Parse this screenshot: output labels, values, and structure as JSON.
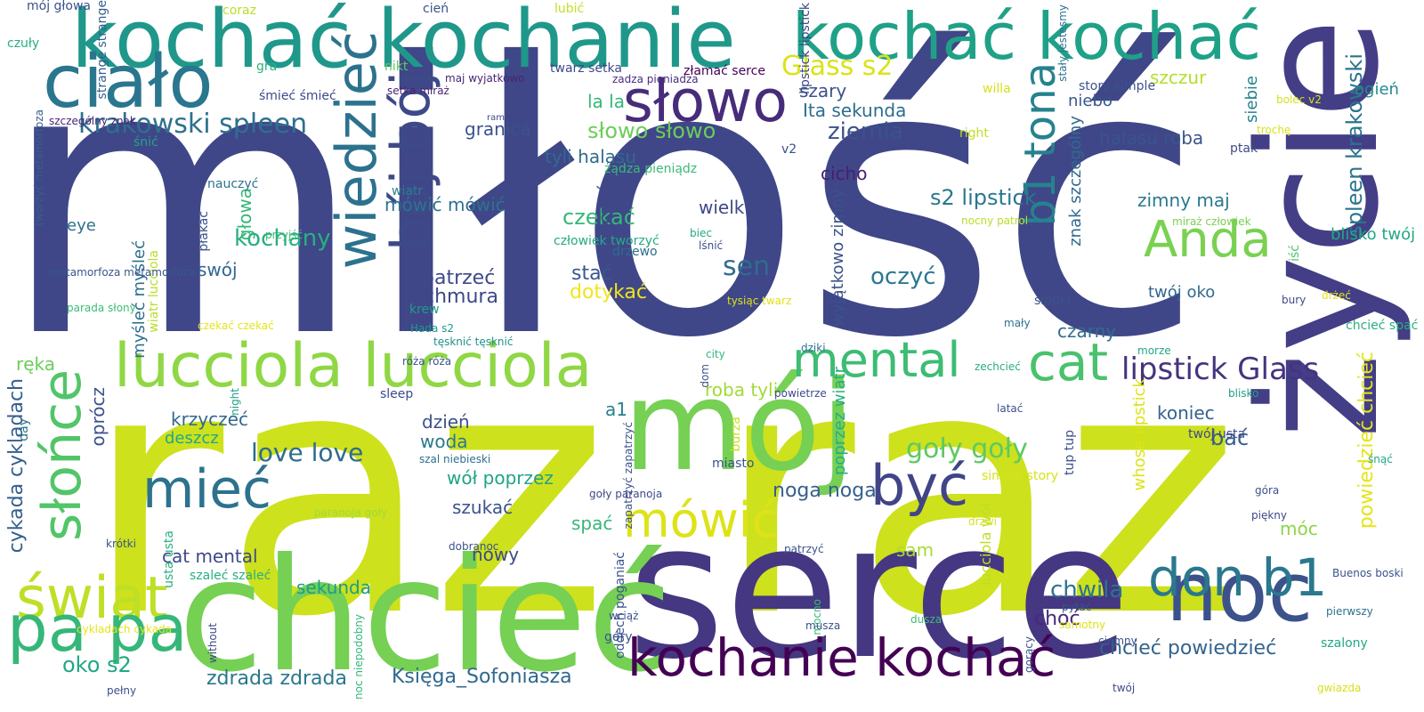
{
  "words": [
    {
      "text": "miłość",
      "color": "#3f4788",
      "rotated": false
    },
    {
      "text": "raz raz",
      "color": "#cde11d",
      "rotated": false
    },
    {
      "text": "serce",
      "color": "#453781",
      "rotated": false
    },
    {
      "text": "chcieć",
      "color": "#75d054",
      "rotated": false
    },
    {
      "text": "mój",
      "color": "#75d054",
      "rotated": false
    },
    {
      "text": "życie",
      "color": "#433e85",
      "rotated": true
    },
    {
      "text": "kochać kochanie",
      "color": "#1f988b",
      "rotated": false
    },
    {
      "text": "kochać kochać",
      "color": "#1fa187",
      "rotated": false
    },
    {
      "text": "noc",
      "color": "#3b528b",
      "rotated": false
    },
    {
      "text": "kochanie kochać",
      "color": "#440154",
      "rotated": false
    },
    {
      "text": "lucciola lucciola",
      "color": "#8fd744",
      "rotated": false
    },
    {
      "text": "ciało",
      "color": "#2a768e",
      "rotated": false
    },
    {
      "text": "słowo",
      "color": "#472c7a",
      "rotated": false
    },
    {
      "text": "wiedzieć",
      "color": "#2c728e",
      "rotated": true
    },
    {
      "text": "bój bój",
      "color": "#3e4989",
      "rotated": true
    },
    {
      "text": "świat",
      "color": "#bddf26",
      "rotated": false
    },
    {
      "text": "pa pa",
      "color": "#35b779",
      "rotated": false
    },
    {
      "text": "słońce",
      "color": "#52c569",
      "rotated": true
    },
    {
      "text": "mieć",
      "color": "#2c728e",
      "rotated": false
    },
    {
      "text": "don b1",
      "color": "#2a788e",
      "rotated": false
    },
    {
      "text": "cat",
      "color": "#4ac16d",
      "rotated": false
    },
    {
      "text": "mental",
      "color": "#3dbc74",
      "rotated": false
    },
    {
      "text": "Anda",
      "color": "#7ad151",
      "rotated": false
    },
    {
      "text": "być",
      "color": "#414487",
      "rotated": false
    },
    {
      "text": "mówić",
      "color": "#dde318",
      "rotated": false
    },
    {
      "text": "b1 tona",
      "color": "#26828e",
      "rotated": true
    },
    {
      "text": "lipstick Glass",
      "color": "#46337f",
      "rotated": false
    },
    {
      "text": "Glass s2",
      "color": "#dae319",
      "rotated": false
    },
    {
      "text": "krakowski spleen",
      "color": "#2d708e",
      "rotated": false
    },
    {
      "text": "spleen krakowski",
      "color": "#2b748e",
      "rotated": true
    },
    {
      "text": "chwila",
      "color": "#2b748e",
      "rotated": false
    },
    {
      "text": "chcieć powiedzieć",
      "color": "#33638d",
      "rotated": false
    },
    {
      "text": "powiedzieć chcieć",
      "color": "#e5e419",
      "rotated": true
    },
    {
      "text": "oko s2",
      "color": "#22a785",
      "rotated": false
    },
    {
      "text": "zdrada zdrada",
      "color": "#2a778e",
      "rotated": false
    },
    {
      "text": "Księga_Sofoniasza",
      "color": "#31688e",
      "rotated": false
    },
    {
      "text": "cykada cykladach",
      "color": "#355f8d",
      "rotated": true
    },
    {
      "text": "goły goły",
      "color": "#5ec962",
      "rotated": false
    },
    {
      "text": "love love",
      "color": "#2f6c8e",
      "rotated": false
    },
    {
      "text": "sen",
      "color": "#2f6c8e",
      "rotated": false
    },
    {
      "text": "oczyć",
      "color": "#29798e",
      "rotated": false
    },
    {
      "text": "ziemia",
      "color": "#3b528b",
      "rotated": false
    },
    {
      "text": "s2 lipstick",
      "color": "#2a788e",
      "rotated": false
    },
    {
      "text": "halasu roba",
      "color": "#3a548c",
      "rotated": false
    },
    {
      "text": "słowo słowo",
      "color": "#6ccd5a",
      "rotated": false
    },
    {
      "text": "tyli halasu",
      "color": "#2f6b8e",
      "rotated": false
    },
    {
      "text": "czekać",
      "color": "#35b779",
      "rotated": false
    },
    {
      "text": "stać",
      "color": "#38588c",
      "rotated": false
    },
    {
      "text": "dotykać",
      "color": "#f1e51d",
      "rotated": false
    },
    {
      "text": "cicho",
      "color": "#481f70",
      "rotated": false
    },
    {
      "text": "wielki",
      "color": "#3e4989",
      "rotated": false
    },
    {
      "text": "zimny maj",
      "color": "#2a788e",
      "rotated": false
    },
    {
      "text": "twój oko",
      "color": "#31688e",
      "rotated": false
    },
    {
      "text": "blisko twój",
      "color": "#22a884",
      "rotated": false
    },
    {
      "text": "znak szczególny",
      "color": "#30698e",
      "rotated": true
    },
    {
      "text": "siebie",
      "color": "#26828e",
      "rotated": true
    },
    {
      "text": "niebo",
      "color": "#39568c",
      "rotated": false
    },
    {
      "text": "szczur",
      "color": "#b5de2b",
      "rotated": false
    },
    {
      "text": "szary",
      "color": "#3b528b",
      "rotated": false
    },
    {
      "text": "Ita sekunda",
      "color": "#2e6d8e",
      "rotated": false
    },
    {
      "text": "mówić mówić",
      "color": "#2c738e",
      "rotated": false
    },
    {
      "text": "granica",
      "color": "#3b528b",
      "rotated": false
    },
    {
      "text": "znaczyć",
      "color": "#3e4989",
      "rotated": true
    },
    {
      "text": "la la",
      "color": "#35b779",
      "rotated": false
    },
    {
      "text": "a1",
      "color": "#27808e",
      "rotated": false
    },
    {
      "text": "roba tyli",
      "color": "#a2da37",
      "rotated": false
    },
    {
      "text": "dzień",
      "color": "#3b528b",
      "rotated": false
    },
    {
      "text": "woda",
      "color": "#2a788e",
      "rotated": false
    },
    {
      "text": "wół poprzez",
      "color": "#20a386",
      "rotated": false
    },
    {
      "text": "szukać",
      "color": "#3b528b",
      "rotated": false
    },
    {
      "text": "spać",
      "color": "#35b779",
      "rotated": false
    },
    {
      "text": "nowy",
      "color": "#3e4989",
      "rotated": false
    },
    {
      "text": "noga noga",
      "color": "#355f8d",
      "rotated": false
    },
    {
      "text": "sam",
      "color": "#a8db34",
      "rotated": false
    },
    {
      "text": "sekunda",
      "color": "#1e9c89",
      "rotated": false
    },
    {
      "text": "cat mental",
      "color": "#3e4989",
      "rotated": false
    },
    {
      "text": "patrzeć",
      "color": "#3e4989",
      "rotated": false
    },
    {
      "text": "chmura",
      "color": "#3e4989",
      "rotated": false
    },
    {
      "text": "czarny",
      "color": "#2f6c8e",
      "rotated": false
    },
    {
      "text": "koniec",
      "color": "#33638d",
      "rotated": false
    },
    {
      "text": "bać",
      "color": "#355f8d",
      "rotated": false
    },
    {
      "text": "choć",
      "color": "#482878",
      "rotated": false
    },
    {
      "text": "móc",
      "color": "#8bd646",
      "rotated": false
    },
    {
      "text": "ogień",
      "color": "#238a8d",
      "rotated": false
    },
    {
      "text": "ręka",
      "color": "#6ccd5a",
      "rotated": false
    },
    {
      "text": "krzyczeć",
      "color": "#31688e",
      "rotated": false
    },
    {
      "text": "deszcz",
      "color": "#22a785",
      "rotated": false
    },
    {
      "text": "kochany",
      "color": "#29af7f",
      "rotated": false
    },
    {
      "text": "głowa",
      "color": "#35b779",
      "rotated": true
    },
    {
      "text": "swój",
      "color": "#31688e",
      "rotated": false
    },
    {
      "text": "eye",
      "color": "#2c728e",
      "rotated": false
    },
    {
      "text": "oprócz",
      "color": "#3b528b",
      "rotated": true
    },
    {
      "text": "poprzez wiatr",
      "color": "#26ad81",
      "rotated": true
    },
    {
      "text": "wyjątkowo zimny",
      "color": "#3b528b",
      "rotated": true
    },
    {
      "text": "whose lipstick",
      "color": "#dde318",
      "rotated": true
    },
    {
      "text": "myśleć myśleć",
      "color": "#2e6d8e",
      "rotated": true
    },
    {
      "text": "lucciola wół",
      "color": "#bddf26",
      "rotated": true
    },
    {
      "text": "wiatr lucciola",
      "color": "#b5de2b",
      "rotated": true
    },
    {
      "text": "przyjść",
      "color": "#3aba76",
      "rotated": false
    },
    {
      "text": "płakać",
      "color": "#3b528b",
      "rotated": true
    },
    {
      "text": "usta usta",
      "color": "#2ab07f",
      "rotated": true
    },
    {
      "text": "szaleć szaleć",
      "color": "#29af7f",
      "rotated": false
    },
    {
      "text": "paranoja goły",
      "color": "#a2da37",
      "rotated": false
    },
    {
      "text": "czuły",
      "color": "#27ad81",
      "rotated": false
    },
    {
      "text": "mój głowa",
      "color": "#3b528b",
      "rotated": false
    },
    {
      "text": "strange strange",
      "color": "#355f8d",
      "rotated": true
    },
    {
      "text": "tworzyć metamorfoza",
      "color": "#355f8d",
      "rotated": true
    },
    {
      "text": "szczególny znak",
      "color": "#482475",
      "rotated": false
    },
    {
      "text": "śnić",
      "color": "#20a386",
      "rotated": false
    },
    {
      "text": "coraz",
      "color": "#b8de29",
      "rotated": false
    },
    {
      "text": "gra",
      "color": "#2ab07f",
      "rotated": false
    },
    {
      "text": "śmieć śmieć",
      "color": "#3e4989",
      "rotated": false
    },
    {
      "text": "setka miraż",
      "color": "#482475",
      "rotated": false
    },
    {
      "text": "nikt",
      "color": "#5ec962",
      "rotated": false
    },
    {
      "text": "cień",
      "color": "#3b528b",
      "rotated": false
    },
    {
      "text": "lubić",
      "color": "#c2df23",
      "rotated": false
    },
    {
      "text": "twarz setka",
      "color": "#3e4989",
      "rotated": false
    },
    {
      "text": "zadza pieniadza",
      "color": "#472d7b",
      "rotated": false
    },
    {
      "text": "złamać serce",
      "color": "#440154",
      "rotated": false
    },
    {
      "text": "maj wyjatkowo",
      "color": "#482475",
      "rotated": false
    },
    {
      "text": "ramię",
      "color": "#3e4989",
      "rotated": false
    },
    {
      "text": "wiatr",
      "color": "#27808e",
      "rotated": false
    },
    {
      "text": "lipstick lipstick",
      "color": "#3e4989",
      "rotated": true
    },
    {
      "text": "stały jestesmy",
      "color": "#2c728e",
      "rotated": true
    },
    {
      "text": "willa",
      "color": "#d5e21a",
      "rotated": false
    },
    {
      "text": "story simple",
      "color": "#3b528b",
      "rotated": false
    },
    {
      "text": "right",
      "color": "#c0df25",
      "rotated": false
    },
    {
      "text": "v2",
      "color": "#3b528b",
      "rotated": false
    },
    {
      "text": "żądza pieniądz",
      "color": "#3aba76",
      "rotated": false
    },
    {
      "text": "nauczyć",
      "color": "#2c728e",
      "rotated": false
    },
    {
      "text": "człowiek tworzyć",
      "color": "#24aa83",
      "rotated": false
    },
    {
      "text": "drzewo",
      "color": "#2e6d8e",
      "rotated": false
    },
    {
      "text": "biec",
      "color": "#22a785",
      "rotated": false
    },
    {
      "text": "lśnić",
      "color": "#3b528b",
      "rotated": false
    },
    {
      "text": "krew",
      "color": "#1e9c89",
      "rotated": false
    },
    {
      "text": "tysiąc twarz",
      "color": "#dde318",
      "rotated": false
    },
    {
      "text": "nocny patrol",
      "color": "#b8de29",
      "rotated": false
    },
    {
      "text": "miraż człowiek",
      "color": "#7ad151",
      "rotated": false
    },
    {
      "text": "iść",
      "color": "#52c569",
      "rotated": true
    },
    {
      "text": "bolec v2",
      "color": "#d5e21a",
      "rotated": false
    },
    {
      "text": "trochę",
      "color": "#d5e21a",
      "rotated": false
    },
    {
      "text": "ptak",
      "color": "#3e4989",
      "rotated": false
    },
    {
      "text": "drżeć",
      "color": "#e5e419",
      "rotated": false
    },
    {
      "text": "bury",
      "color": "#3e4989",
      "rotated": false
    },
    {
      "text": "chcieć spać",
      "color": "#29af7f",
      "rotated": false
    },
    {
      "text": "słodki",
      "color": "#3b528b",
      "rotated": false
    },
    {
      "text": "mały",
      "color": "#2c728e",
      "rotated": false
    },
    {
      "text": "morze",
      "color": "#22a785",
      "rotated": false
    },
    {
      "text": "Hada s2",
      "color": "#1f988b",
      "rotated": false
    },
    {
      "text": "róża róża",
      "color": "#3b528b",
      "rotated": false
    },
    {
      "text": "tęsknić tęsknić",
      "color": "#21918c",
      "rotated": false
    },
    {
      "text": "city",
      "color": "#35b779",
      "rotated": false
    },
    {
      "text": "dziki",
      "color": "#2c728e",
      "rotated": false
    },
    {
      "text": "dom",
      "color": "#3b528b",
      "rotated": true
    },
    {
      "text": "zechcieć",
      "color": "#27ad81",
      "rotated": false
    },
    {
      "text": "latać",
      "color": "#3b528b",
      "rotated": false
    },
    {
      "text": "powietrze",
      "color": "#3e4989",
      "rotated": false
    },
    {
      "text": "blisko",
      "color": "#1fa187",
      "rotated": false
    },
    {
      "text": "night",
      "color": "#1e9c89",
      "rotated": true
    },
    {
      "text": "sleep",
      "color": "#3e4989",
      "rotated": false
    },
    {
      "text": "czekać czekać",
      "color": "#e5e419",
      "rotated": false
    },
    {
      "text": "parada słony",
      "color": "#3dbc74",
      "rotated": false
    },
    {
      "text": "metamorfoza metamorfoza",
      "color": "#39568c",
      "rotated": false
    },
    {
      "text": "day",
      "color": "#2c728e",
      "rotated": true
    },
    {
      "text": "burza",
      "color": "#c8e020",
      "rotated": true
    },
    {
      "text": "zapatrzyć zapatrzyć",
      "color": "#3b528b",
      "rotated": true
    },
    {
      "text": "tup tup",
      "color": "#3b528b",
      "rotated": true
    },
    {
      "text": "twój usta",
      "color": "#3e4989",
      "rotated": false
    },
    {
      "text": "szal niebieski",
      "color": "#2c728e",
      "rotated": false
    },
    {
      "text": "miasto",
      "color": "#3b528b",
      "rotated": false
    },
    {
      "text": "simple story",
      "color": "#d5e21a",
      "rotated": false
    },
    {
      "text": "goły paranoja",
      "color": "#3e4989",
      "rotated": false
    },
    {
      "text": "góra",
      "color": "#3b528b",
      "rotated": false
    },
    {
      "text": "piękny",
      "color": "#3e4989",
      "rotated": false
    },
    {
      "text": "śnąć",
      "color": "#22a785",
      "rotated": false
    },
    {
      "text": "drzwi",
      "color": "#d5e21a",
      "rotated": false
    },
    {
      "text": "patrzyć",
      "color": "#3b528b",
      "rotated": false
    },
    {
      "text": "oddech poganiać",
      "color": "#3b528b",
      "rotated": true
    },
    {
      "text": "dobranoc",
      "color": "#3b528b",
      "rotated": false
    },
    {
      "text": "krótki",
      "color": "#3b528b",
      "rotated": false
    },
    {
      "text": "cykladach cykada",
      "color": "#e5e419",
      "rotated": false
    },
    {
      "text": "noc niepodobny",
      "color": "#35b779",
      "rotated": true
    },
    {
      "text": "without",
      "color": "#3e4989",
      "rotated": true
    },
    {
      "text": "wciąż",
      "color": "#3b528b",
      "rotated": false
    },
    {
      "text": "góry",
      "color": "#3b528b",
      "rotated": false
    },
    {
      "text": "mocno",
      "color": "#3aba76",
      "rotated": true
    },
    {
      "text": "musza",
      "color": "#3b528b",
      "rotated": false
    },
    {
      "text": "dusza",
      "color": "#3dbc74",
      "rotated": false
    },
    {
      "text": "pytać",
      "color": "#3b528b",
      "rotated": false
    },
    {
      "text": "samotny",
      "color": "#dde318",
      "rotated": false
    },
    {
      "text": "gorący",
      "color": "#3b528b",
      "rotated": true
    },
    {
      "text": "ciemny",
      "color": "#3b528b",
      "rotated": false
    },
    {
      "text": "Buenos boski",
      "color": "#3b528b",
      "rotated": false
    },
    {
      "text": "pierwszy",
      "color": "#2c728e",
      "rotated": false
    },
    {
      "text": "szalony",
      "color": "#22a785",
      "rotated": false
    },
    {
      "text": "pełny",
      "color": "#3b528b",
      "rotated": false
    },
    {
      "text": "twój",
      "color": "#3e4989",
      "rotated": false
    },
    {
      "text": "gwiazda",
      "color": "#d5e21a",
      "rotated": false
    },
    {
      "text": "aniol aniol",
      "color": "#2c728e",
      "rotated": false
    },
    {
      "text": "boski Buenos",
      "color": "#2c728e",
      "rotated": false
    },
    {
      "text": "jestesmy stały",
      "color": "#e5e419",
      "rotated": false
    }
  ]
}
